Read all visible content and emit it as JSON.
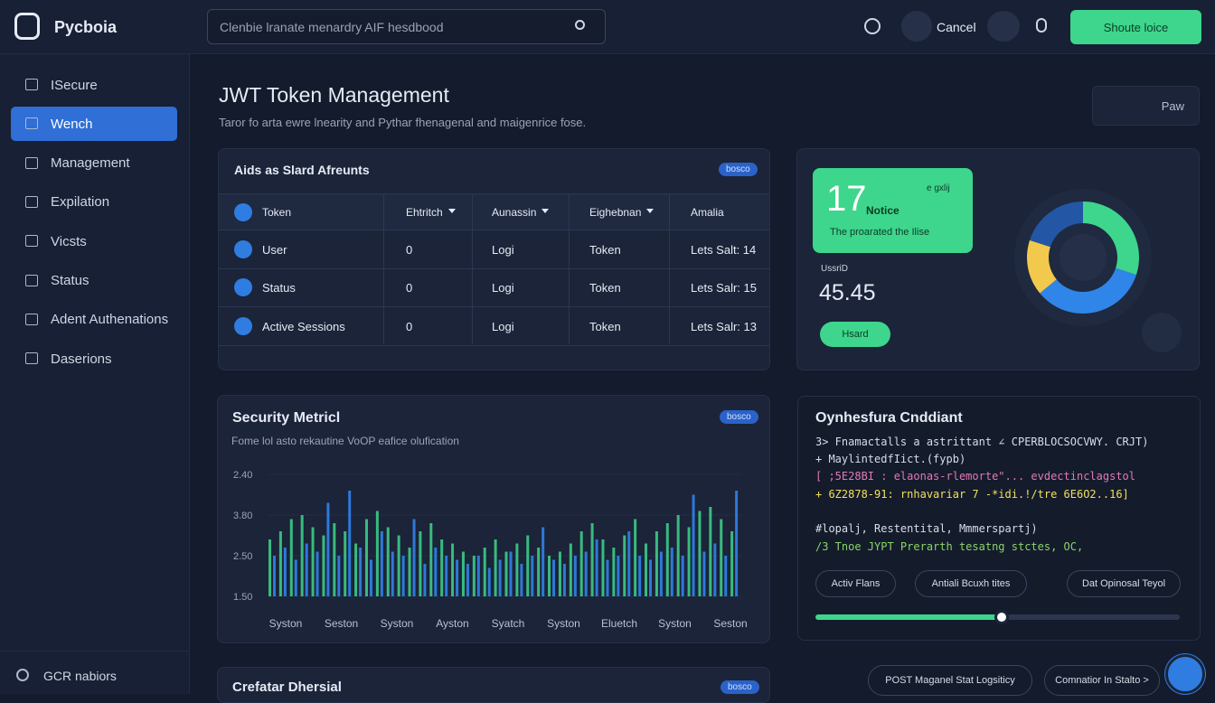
{
  "header": {
    "logo": "Pycboia",
    "search_placeholder": "Clenbie lranate menardry AIF hesdbood",
    "cancel": "Cancel",
    "primary_button": "Shoute loice"
  },
  "sidebar": {
    "items": [
      "ISecure",
      "Wench",
      "Management",
      "Expilation",
      "Vicsts",
      "Status",
      "Adent Authenations",
      "Daserions"
    ],
    "footer": "GCR nabiors"
  },
  "main": {
    "title": "JWT Token Management",
    "subtitle": "Taror fo arta ewre lnearity and Pythar fhenagenal and maigenrice fose.",
    "top_button": "Paw"
  },
  "accounts": {
    "title": "Aids as Slard Afreunts",
    "badge": "bosco",
    "columns": [
      "Token",
      "Ehtritch",
      "Aunassin",
      "Eighebnan",
      "Amalia"
    ],
    "rows": [
      [
        "User",
        "0",
        "Logi",
        "Token",
        "Lets Salt: 14"
      ],
      [
        "Status",
        "0",
        "Logi",
        "Token",
        "Lets Salr: 15"
      ],
      [
        "Active Sessions",
        "0",
        "Logi",
        "Token",
        "Lets Salr: 13"
      ]
    ]
  },
  "summary": {
    "big_number": "17",
    "big_label": "Notice",
    "caption": "The proarated the Ilise",
    "corner": "e gxlij",
    "metric_label": "UssriD",
    "metric_value": "45.45",
    "button": "Hsard",
    "donut": {
      "type": "pie",
      "values": [
        30,
        34,
        16,
        20
      ],
      "colors": [
        "#3dd68c",
        "#2f86e8",
        "#f2c94c",
        "#2456a6"
      ]
    }
  },
  "chart_data": {
    "type": "bar",
    "title": "Security Metricl",
    "badge": "bosco",
    "subtitle": "Fome lol asto rekautine VoOP eafice olufication",
    "x_axis_labels": [
      "Syston",
      "Seston",
      "Syston",
      "Ayston",
      "Syatch",
      "Syston",
      "Eluetch",
      "Syston",
      "Seston"
    ],
    "ylim": [
      0,
      3
    ],
    "yticks": [
      {
        "value": 0,
        "label": "1.50"
      },
      {
        "value": 1,
        "label": "2.50"
      },
      {
        "value": 2,
        "label": "3.80"
      },
      {
        "value": 3,
        "label": "2.40"
      }
    ],
    "series": [
      {
        "color": "#3dd68c",
        "values": [
          1.4,
          1.6,
          1.9,
          2.0,
          1.7,
          1.5,
          1.8,
          1.6,
          1.3,
          1.9,
          2.1,
          1.7,
          1.5,
          1.2,
          1.6,
          1.8,
          1.4,
          1.3,
          1.1,
          1.0,
          1.2,
          1.4,
          1.1,
          1.3,
          1.5,
          1.2,
          1.0,
          1.1,
          1.3,
          1.6,
          1.8,
          1.4,
          1.2,
          1.5,
          1.9,
          1.3,
          1.6,
          1.8,
          2.0,
          1.7,
          2.1,
          2.2,
          1.9,
          1.6
        ]
      },
      {
        "color": "#2f7de1",
        "values": [
          1.0,
          1.2,
          0.9,
          1.3,
          1.1,
          2.3,
          1.0,
          2.6,
          1.2,
          0.9,
          1.6,
          1.1,
          1.0,
          1.9,
          0.8,
          1.2,
          1.0,
          0.9,
          0.8,
          1.0,
          0.7,
          0.9,
          1.1,
          0.8,
          1.0,
          1.7,
          0.9,
          0.8,
          1.0,
          1.1,
          1.4,
          0.9,
          1.0,
          1.6,
          1.0,
          0.9,
          1.1,
          1.2,
          1.0,
          2.5,
          1.1,
          1.3,
          1.0,
          2.6
        ]
      }
    ]
  },
  "console": {
    "title": "Oynhesfura Cnddiant",
    "lines": [
      "3> Fnamactalls a astrittant ∠ CPERBLOCSOCVWY. CRJT)",
      "+ MaylintedfIict.(fypb)",
      "[ ;5E28BI : elaonas-rlemorte\"... evdectinclagstol",
      "+ 6Z2878-91: rnhavariar 7 -*idi.!/tre 6E6O2..16]",
      "#lopalj, Restentital, Mmmerspartj)",
      "/3 Tnoe JYPT Prerarth tesatng stctes, OC,"
    ],
    "buttons": [
      "Activ Flans",
      "Antiali Bcuxh tites",
      "Dat Opinosal Teyol"
    ],
    "slider": {
      "min": 0,
      "max": 100,
      "value": 51
    }
  },
  "footer": {
    "title": "Crefatar Dhersial",
    "badge": "bosco",
    "buttons": [
      "POST Maganel Stat Logsiticy",
      "Comnatior In Stalto >"
    ]
  }
}
